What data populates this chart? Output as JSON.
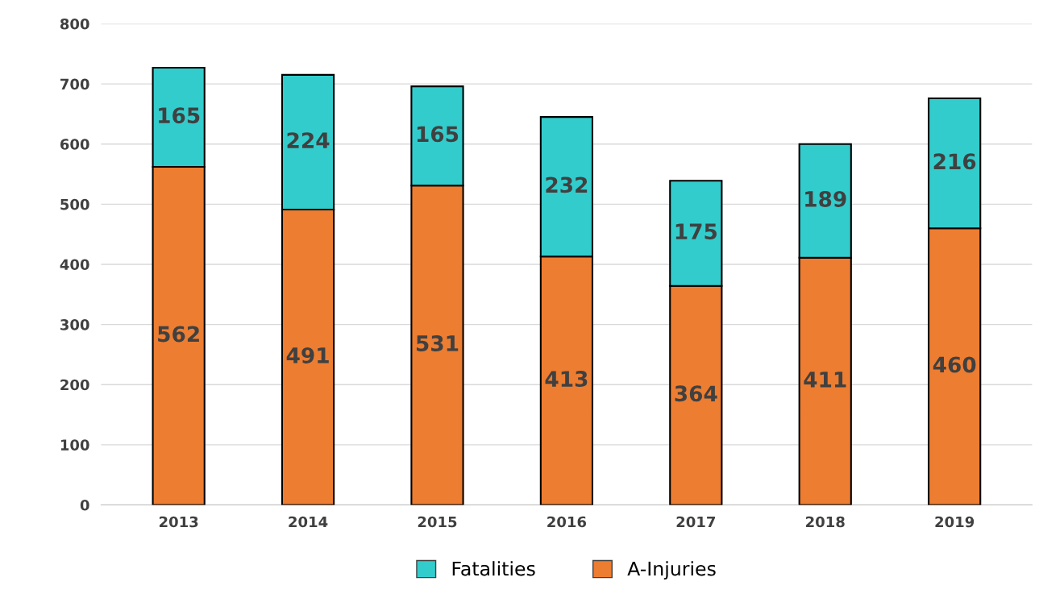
{
  "chart_data": {
    "type": "bar",
    "stacked": true,
    "categories": [
      "2013",
      "2014",
      "2015",
      "2016",
      "2017",
      "2018",
      "2019"
    ],
    "series": [
      {
        "name": "A-Injuries",
        "color": "#ed7d31",
        "values": [
          562,
          491,
          531,
          413,
          364,
          411,
          460
        ]
      },
      {
        "name": "Fatalities",
        "color": "#33cccc",
        "values": [
          165,
          224,
          165,
          232,
          175,
          189,
          216
        ]
      }
    ],
    "ylim": [
      0,
      800
    ],
    "yticks": [
      0,
      100,
      200,
      300,
      400,
      500,
      600,
      700,
      800
    ],
    "grid": "y",
    "legend": "bottom",
    "data_labels": true
  }
}
